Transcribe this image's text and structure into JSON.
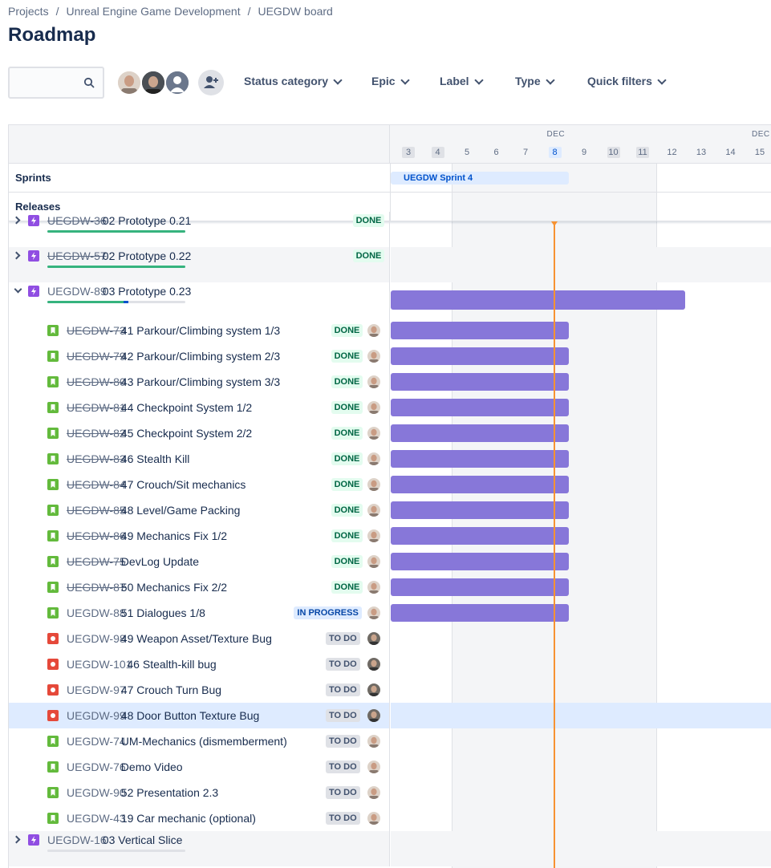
{
  "breadcrumb": [
    "Projects",
    "Unreal Engine Game Development",
    "UEGDW board"
  ],
  "page_title": "Roadmap",
  "toolbar": {
    "search_placeholder": "",
    "filters": [
      "Status category",
      "Epic",
      "Label",
      "Type",
      "Quick filters"
    ]
  },
  "timeline": {
    "months": [
      {
        "label": "DEC",
        "at_day": 8
      },
      {
        "label": "DEC",
        "at_day": 15
      }
    ],
    "days": [
      {
        "label": "3",
        "kind": "weekend"
      },
      {
        "label": "4",
        "kind": "weekend"
      },
      {
        "label": "5",
        "kind": ""
      },
      {
        "label": "6",
        "kind": ""
      },
      {
        "label": "7",
        "kind": ""
      },
      {
        "label": "8",
        "kind": "today"
      },
      {
        "label": "9",
        "kind": ""
      },
      {
        "label": "10",
        "kind": "weekend"
      },
      {
        "label": "11",
        "kind": "weekend"
      },
      {
        "label": "12",
        "kind": ""
      },
      {
        "label": "13",
        "kind": ""
      },
      {
        "label": "14",
        "kind": ""
      },
      {
        "label": "15",
        "kind": ""
      }
    ]
  },
  "sprints_label": "Sprints",
  "releases_label": "Releases",
  "sprint": {
    "name": "UEGDW Sprint 4"
  },
  "rows": [
    {
      "kind": "epic",
      "expanded": false,
      "key": "UEGDW-36",
      "summary": "02 Prototype 0.21",
      "status": "DONE",
      "status_kind": "done",
      "done_key": true,
      "progress_done": 1.0,
      "progress_inprog": 0.0
    },
    {
      "kind": "epic",
      "expanded": false,
      "key": "UEGDW-57",
      "summary": "02 Prototype 0.22",
      "status": "DONE",
      "status_kind": "done",
      "done_key": true,
      "progress_done": 1.0,
      "progress_inprog": 0.0
    },
    {
      "kind": "epic",
      "expanded": true,
      "key": "UEGDW-89",
      "summary": "03 Prototype 0.23",
      "status": "",
      "status_kind": "",
      "done_key": false,
      "progress_done": 0.55,
      "progress_inprog": 0.04,
      "bar": true,
      "bar_wide": true
    },
    {
      "kind": "story",
      "key": "UEGDW-73",
      "summary": "41 Parkour/Climbing system 1/3",
      "status": "DONE",
      "status_kind": "done",
      "done_key": true,
      "bar": true
    },
    {
      "kind": "story",
      "key": "UEGDW-79",
      "summary": "42 Parkour/Climbing system 2/3",
      "status": "DONE",
      "status_kind": "done",
      "done_key": true,
      "bar": true
    },
    {
      "kind": "story",
      "key": "UEGDW-80",
      "summary": "43 Parkour/Climbing system 3/3",
      "status": "DONE",
      "status_kind": "done",
      "done_key": true,
      "bar": true
    },
    {
      "kind": "story",
      "key": "UEGDW-81",
      "summary": "44 Checkpoint System 1/2",
      "status": "DONE",
      "status_kind": "done",
      "done_key": true,
      "bar": true
    },
    {
      "kind": "story",
      "key": "UEGDW-82",
      "summary": "45 Checkpoint System 2/2",
      "status": "DONE",
      "status_kind": "done",
      "done_key": true,
      "bar": true
    },
    {
      "kind": "story",
      "key": "UEGDW-83",
      "summary": "46 Stealth Kill",
      "status": "DONE",
      "status_kind": "done",
      "done_key": true,
      "bar": true
    },
    {
      "kind": "story",
      "key": "UEGDW-84",
      "summary": "47 Crouch/Sit mechanics",
      "status": "DONE",
      "status_kind": "done",
      "done_key": true,
      "bar": true
    },
    {
      "kind": "story",
      "key": "UEGDW-85",
      "summary": "48 Level/Game Packing",
      "status": "DONE",
      "status_kind": "done",
      "done_key": true,
      "bar": true
    },
    {
      "kind": "story",
      "key": "UEGDW-86",
      "summary": "49 Mechanics Fix 1/2",
      "status": "DONE",
      "status_kind": "done",
      "done_key": true,
      "bar": true
    },
    {
      "kind": "story",
      "key": "UEGDW-75",
      "summary": "DevLog Update",
      "status": "DONE",
      "status_kind": "done",
      "done_key": true,
      "bar": true
    },
    {
      "kind": "story",
      "key": "UEGDW-87",
      "summary": "50 Mechanics Fix 2/2",
      "status": "DONE",
      "status_kind": "done",
      "done_key": true,
      "bar": true
    },
    {
      "kind": "story",
      "key": "UEGDW-88",
      "summary": "51 Dialogues 1/8",
      "status": "IN PROGRESS",
      "status_kind": "inprogress",
      "done_key": false,
      "bar": true
    },
    {
      "kind": "bug",
      "key": "UEGDW-98",
      "summary": "49 Weapon Asset/Texture Bug",
      "status": "TO DO",
      "status_kind": "todo",
      "done_key": false,
      "avatar": "b"
    },
    {
      "kind": "bug",
      "key": "UEGDW-101",
      "summary": "46 Stealth-kill bug",
      "status": "TO DO",
      "status_kind": "todo",
      "done_key": false,
      "avatar": "b"
    },
    {
      "kind": "bug",
      "key": "UEGDW-97",
      "summary": "47 Crouch Turn Bug",
      "status": "TO DO",
      "status_kind": "todo",
      "done_key": false,
      "avatar": "b"
    },
    {
      "kind": "bug",
      "key": "UEGDW-99",
      "summary": "48 Door Button Texture Bug",
      "status": "TO DO",
      "status_kind": "todo",
      "done_key": false,
      "avatar": "b",
      "selected": true
    },
    {
      "kind": "story",
      "key": "UEGDW-74",
      "summary": "UM-Mechanics (dismemberment)",
      "status": "TO DO",
      "status_kind": "todo",
      "done_key": false
    },
    {
      "kind": "story",
      "key": "UEGDW-76",
      "summary": "Demo Video",
      "status": "TO DO",
      "status_kind": "todo",
      "done_key": false
    },
    {
      "kind": "story",
      "key": "UEGDW-90",
      "summary": "52 Presentation 2.3",
      "status": "TO DO",
      "status_kind": "todo",
      "done_key": false
    },
    {
      "kind": "story",
      "key": "UEGDW-43",
      "summary": "19 Car mechanic (optional)",
      "status": "TO DO",
      "status_kind": "todo",
      "done_key": false
    },
    {
      "kind": "epic",
      "expanded": false,
      "key": "UEGDW-16",
      "summary": "03 Vertical Slice",
      "status": "",
      "status_kind": "",
      "done_key": false,
      "progress_done": 0.0,
      "progress_inprog": 0.0
    }
  ],
  "colors": {
    "epic": "#904ee2",
    "story": "#63ba3c",
    "bug": "#e5493a",
    "bar": "#8777d9",
    "today": "#f79232"
  }
}
